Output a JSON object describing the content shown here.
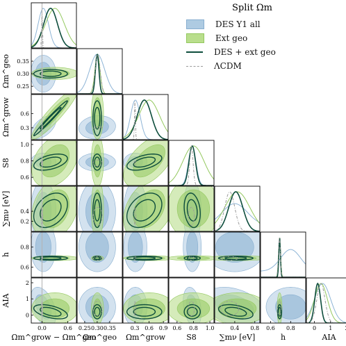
{
  "legend": {
    "title": "Split Ωm",
    "entries": [
      {
        "label": "DES Y1 all",
        "kind": "patch",
        "color": "#aecbe2"
      },
      {
        "label": "Ext geo",
        "kind": "patch",
        "color": "#b9de8c"
      },
      {
        "label": "DES + ext geo",
        "kind": "line",
        "color": "#0d4d3c"
      },
      {
        "label": "ΛCDM",
        "kind": "dashdot",
        "color": "#9a9a9a"
      }
    ]
  },
  "chart_data": {
    "type": "corner",
    "parameters": [
      {
        "name": "Ωm^grow − Ωm^geo",
        "xrange": [
          -0.25,
          0.8
        ],
        "ticks": [
          "0.0",
          "0.6"
        ],
        "tick_values": [
          0.0,
          0.6
        ]
      },
      {
        "name": "Ωm^geo",
        "xrange": [
          0.22,
          0.4
        ],
        "ticks": [
          "0.25",
          "0.30",
          "0.35"
        ],
        "tick_values": [
          0.25,
          0.3,
          0.35
        ]
      },
      {
        "name": "Ωm^grow",
        "xrange": [
          0.05,
          1.0
        ],
        "ticks": [
          "0.3",
          "0.6",
          "0.9"
        ],
        "tick_values": [
          0.3,
          0.6,
          0.9
        ]
      },
      {
        "name": "S8",
        "xrange": [
          0.5,
          1.05
        ],
        "ticks": [
          "0.6",
          "0.8",
          "1.0"
        ],
        "tick_values": [
          0.6,
          0.8,
          1.0
        ]
      },
      {
        "name": "∑mν [eV]",
        "xrange": [
          0.0,
          0.9
        ],
        "ticks": [
          "0.4",
          "0.8"
        ],
        "tick_values": [
          0.4,
          0.8
        ]
      },
      {
        "name": "h",
        "xrange": [
          0.5,
          0.95
        ],
        "ticks": [
          "0.6",
          "0.8"
        ],
        "tick_values": [
          0.6,
          0.8
        ]
      },
      {
        "name": "AIA",
        "xrange": [
          -0.5,
          2.3
        ],
        "ticks": [
          "0",
          "1",
          "2"
        ],
        "tick_values": [
          0,
          1,
          2
        ]
      }
    ],
    "y_axis_labels": [
      "Ωm^geo",
      "Ωm^grow",
      "S8",
      "∑mν [eV]",
      "h",
      "AIA"
    ],
    "y_ticks": [
      {
        "labels": [
          "0.25",
          "0.30",
          "0.35"
        ],
        "values": [
          0.25,
          0.3,
          0.35
        ]
      },
      {
        "labels": [
          "0.3",
          "0.6"
        ],
        "values": [
          0.3,
          0.6
        ]
      },
      {
        "labels": [
          "0.6",
          "0.8",
          "1.0"
        ],
        "values": [
          0.6,
          0.8,
          1.0
        ]
      },
      {
        "labels": [
          "0.2",
          "0.4"
        ],
        "values": [
          0.2,
          0.4
        ]
      },
      {
        "labels": [
          "0.6",
          "0.8"
        ],
        "values": [
          0.6,
          0.8
        ]
      },
      {
        "labels": [
          "0",
          "1",
          "2"
        ],
        "values": [
          0,
          1,
          2
        ]
      }
    ],
    "reference_line": {
      "parameter": "Ωm^grow − Ωm^geo",
      "value": 0.0
    },
    "series": [
      {
        "name": "DES Y1 all",
        "color": "#aecbe2",
        "color_dark": "#87aed0",
        "mean": [
          0.03,
          0.3,
          0.31,
          0.785,
          0.4,
          0.8,
          0.5
        ],
        "sigma": [
          0.12,
          0.03,
          0.1,
          0.045,
          0.25,
          0.1,
          0.5
        ]
      },
      {
        "name": "Ext geo",
        "color": "#b9de8c",
        "color_dark": "#93c85e",
        "mean": [
          0.3,
          0.301,
          0.6,
          0.8,
          0.45,
          0.69,
          0.4
        ],
        "sigma": [
          0.22,
          0.01,
          0.22,
          0.13,
          0.25,
          0.01,
          0.4
        ]
      },
      {
        "name": "DES + ext geo",
        "color": "#0d4d3c",
        "mean": [
          0.2,
          0.3,
          0.5,
          0.785,
          0.42,
          0.69,
          0.2
        ],
        "sigma": [
          0.16,
          0.007,
          0.15,
          0.04,
          0.14,
          0.008,
          0.18
        ]
      },
      {
        "name": "ΛCDM",
        "color": "#9a9a9a",
        "mean": [
          0.0,
          0.302,
          0.302,
          0.775,
          0.3,
          0.688,
          0.4
        ],
        "sigma": [
          0.01,
          0.01,
          0.01,
          0.02,
          0.1,
          0.01,
          0.25
        ]
      }
    ]
  }
}
